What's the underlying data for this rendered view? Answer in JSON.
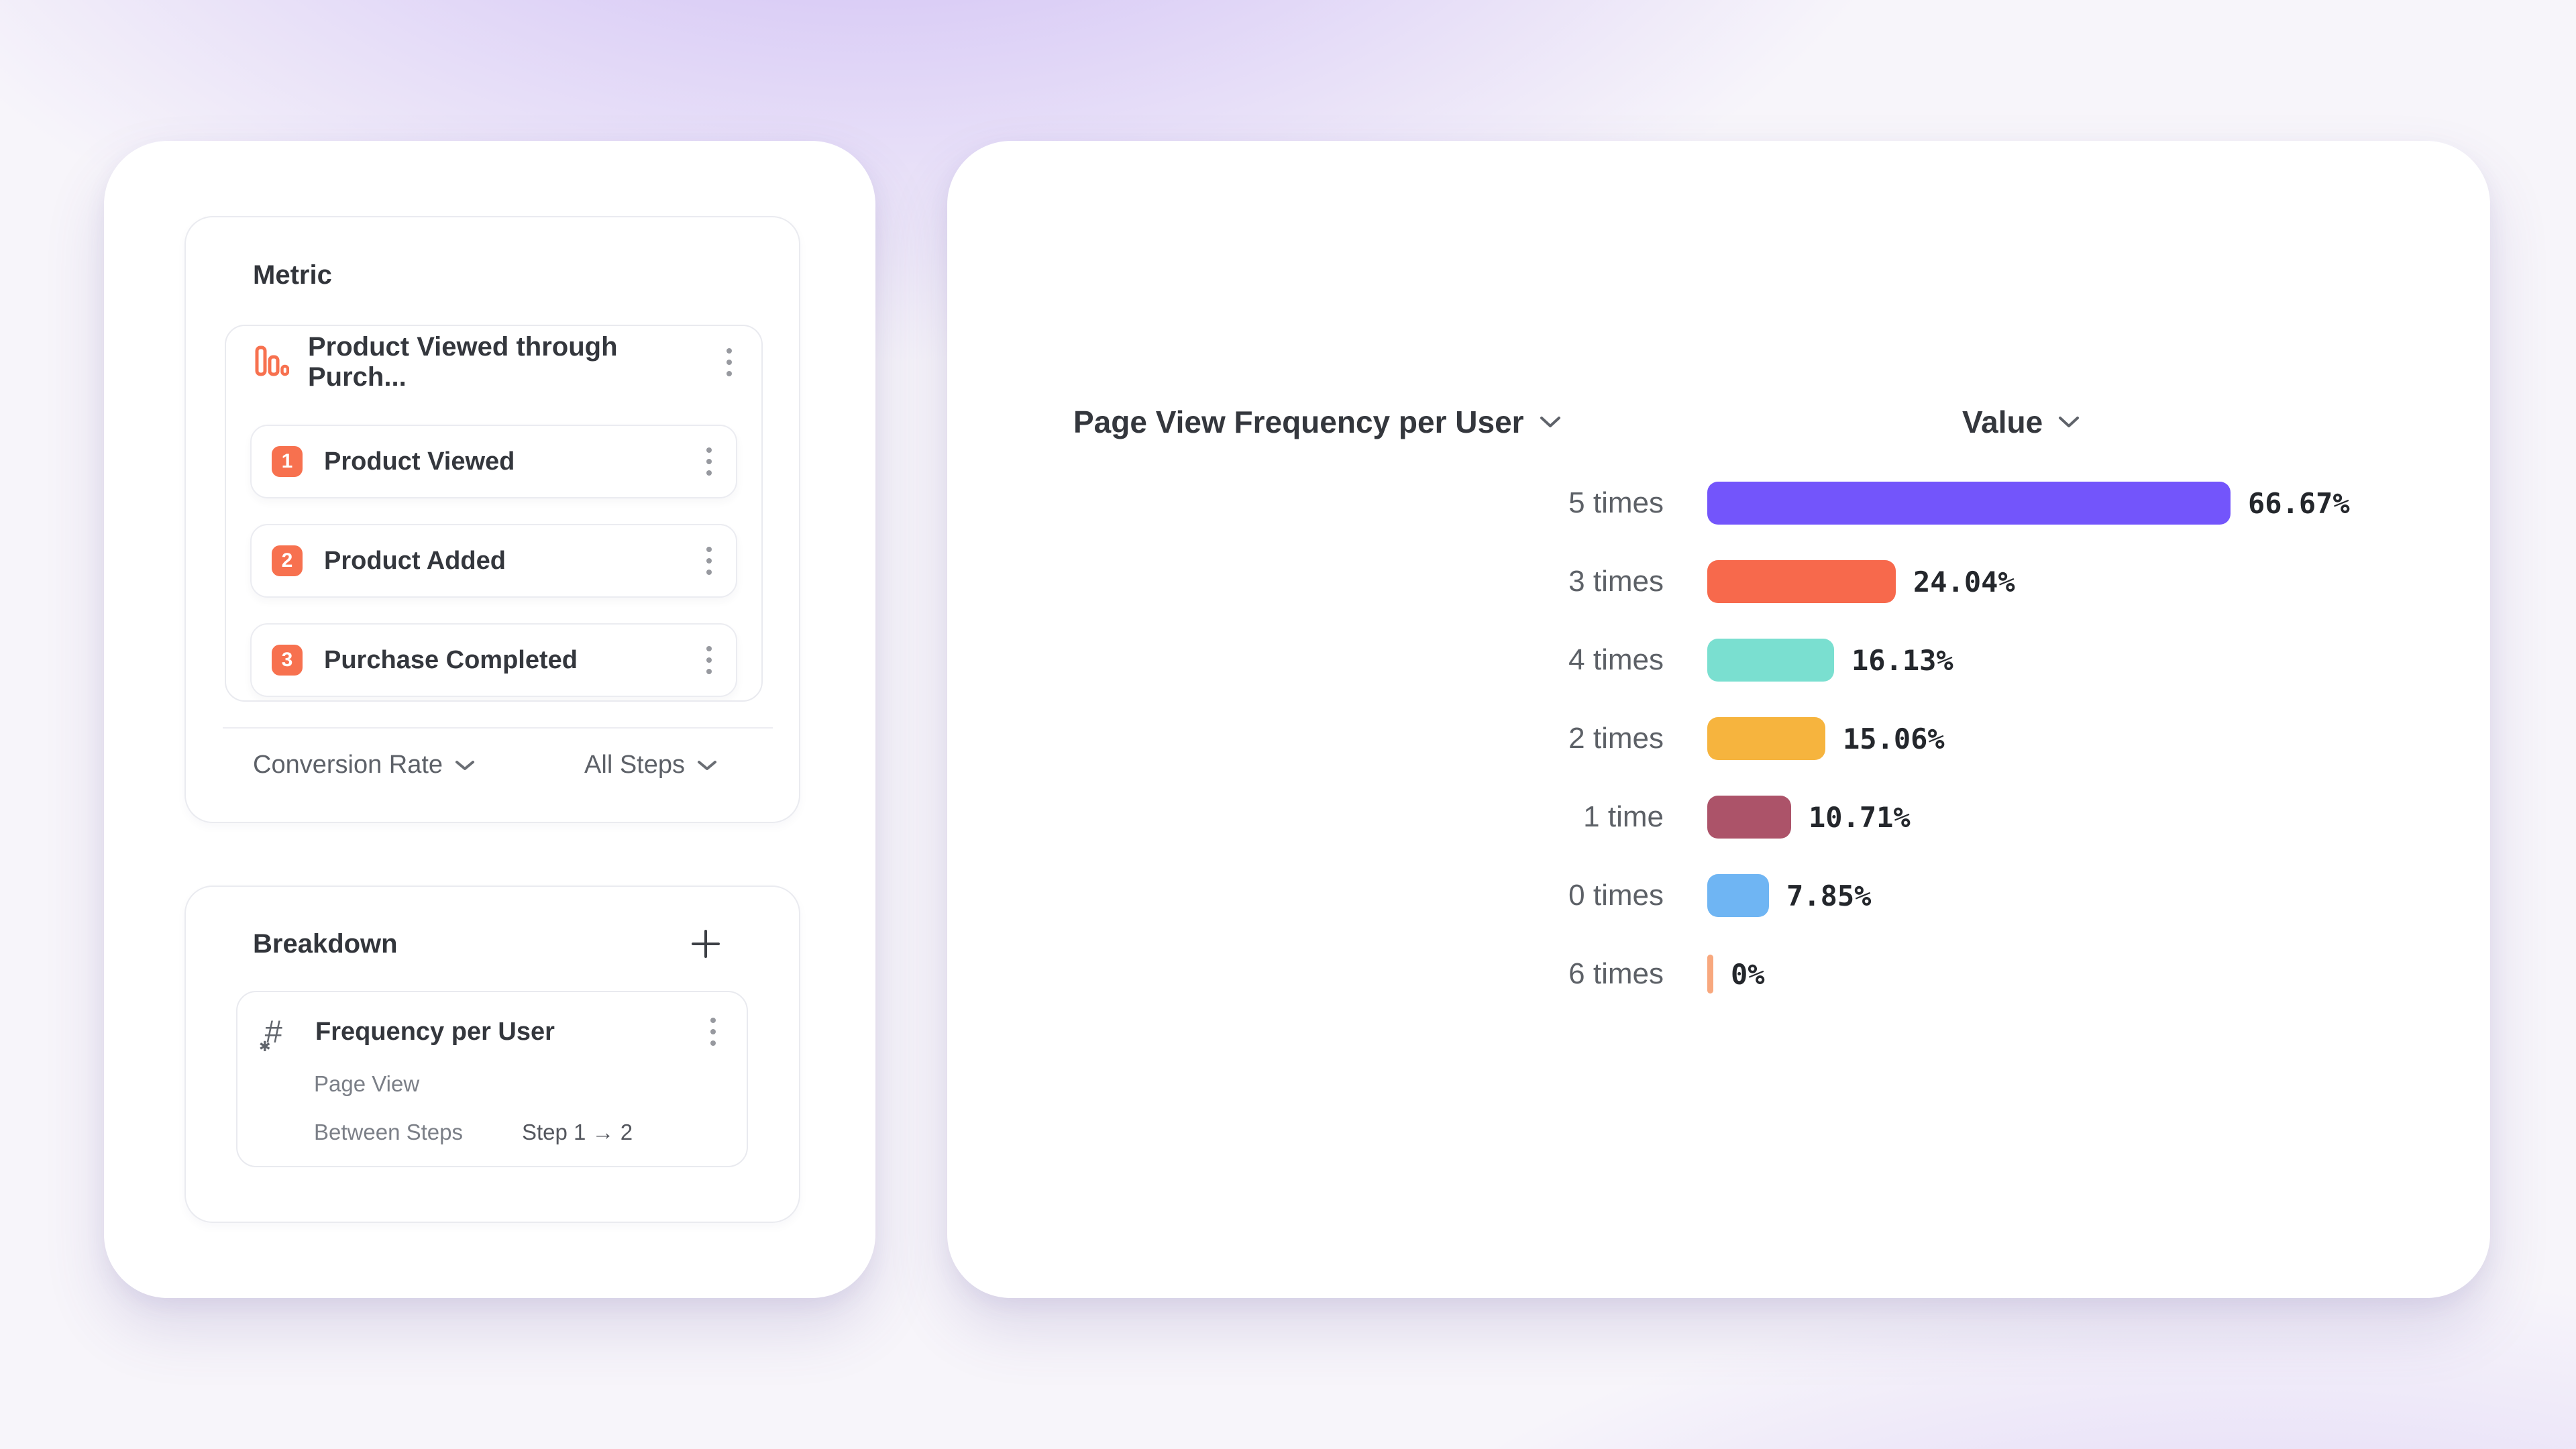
{
  "metric_panel": {
    "title": "Metric",
    "funnel": {
      "name": "Product Viewed through Purch...",
      "steps": [
        {
          "number": "1",
          "label": "Product Viewed"
        },
        {
          "number": "2",
          "label": "Product Added"
        },
        {
          "number": "3",
          "label": "Purchase Completed"
        }
      ]
    },
    "footer": {
      "left_dropdown": "Conversion Rate",
      "right_dropdown": "All Steps"
    }
  },
  "breakdown_panel": {
    "title": "Breakdown",
    "item": {
      "title": "Frequency per User",
      "event": "Page View",
      "scope_label": "Between Steps",
      "scope_value": "Step 1 → 2"
    }
  },
  "chart": {
    "title": "Page View Frequency per User",
    "value_header": "Value"
  },
  "chart_data": {
    "type": "bar",
    "orientation": "horizontal",
    "title": "Page View Frequency per User",
    "value_column": "Value",
    "categories": [
      "5 times",
      "3 times",
      "4 times",
      "2 times",
      "1 time",
      "0 times",
      "6 times"
    ],
    "values": [
      66.67,
      24.04,
      16.13,
      15.06,
      10.71,
      7.85,
      0
    ],
    "labels": [
      "66.67%",
      "24.04%",
      "16.13%",
      "15.06%",
      "10.71%",
      "7.85%",
      "0%"
    ],
    "colors": [
      "#7355FB",
      "#F7694C",
      "#7ADFD0",
      "#F6B43E",
      "#AC5369",
      "#6FB5F3",
      "#F8A87E"
    ],
    "xlim": [
      0,
      70
    ],
    "legend": "none",
    "grid": false
  },
  "colors": {
    "step_badge": "#F7714F",
    "funnel_icon": "#F7714F",
    "card_background": "#ffffff",
    "background_accent": "#9e7aee",
    "text_dark": "#34373d",
    "text_grey": "#5d6168"
  },
  "icons": {
    "funnel_bars": "three outlined descending bars",
    "kebab_menu": "⋮",
    "plus": "+",
    "chevron_down": "⌄",
    "numeric_hash": "#✱"
  }
}
